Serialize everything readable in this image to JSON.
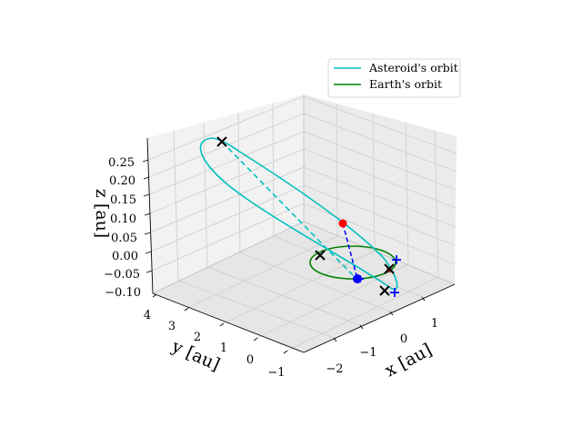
{
  "chart_data": {
    "type": "line",
    "projection": "3d",
    "grid": true,
    "legend_position": "top-right",
    "xlabel": "x [au]",
    "ylabel": "y [au]",
    "zlabel": "z [au]",
    "x_ticks": [
      "−2",
      "−1",
      "0",
      "1"
    ],
    "y_ticks": [
      "−1",
      "0",
      "1",
      "2",
      "3",
      "4"
    ],
    "z_ticks": [
      "−0.10",
      "−0.05",
      "0.00",
      "0.05",
      "0.10",
      "0.15",
      "0.20",
      "0.25"
    ],
    "series": [
      {
        "name": "Asteroid's orbit",
        "color": "#00bfbf"
      },
      {
        "name": "Earth's orbit",
        "color": "#008000"
      }
    ],
    "colors": {
      "asteroid": "#00bfbf",
      "earth": "#008000",
      "current": "#ff0000",
      "nodes": "#0000ff",
      "apsides": "#000000"
    }
  }
}
